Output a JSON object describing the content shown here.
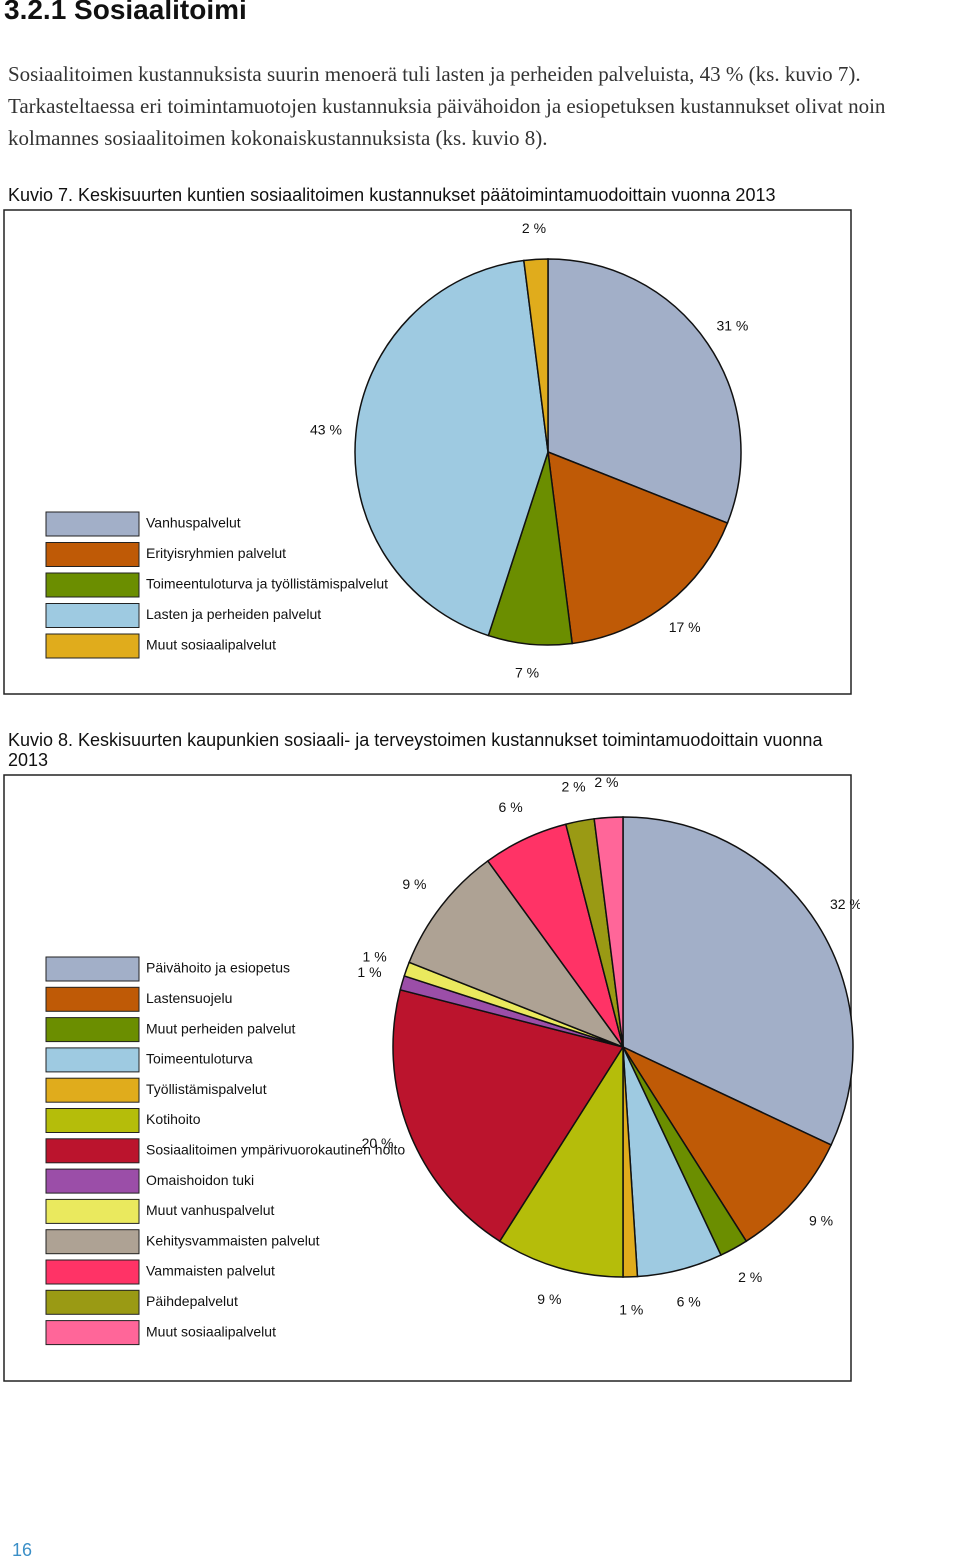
{
  "heading": "3.2.1   Sosiaalitoimi",
  "paragraph": "Sosiaalitoimen kustannuksista suurin menoerä tuli lasten ja perheiden palveluista, 43 % (ks. kuvio 7). Tarkasteltaessa eri toimintamuotojen kustannuksia päivähoidon ja esiopetuksen kustannukset olivat noin kolmannes sosiaalitoimen kokonaiskustannuksista (ks. kuvio 8).",
  "chart_data": [
    {
      "type": "pie",
      "title": "Kuvio 7.  Keskisuurten kuntien sosiaalitoimen kustannukset päätoimintamuodoittain vuonna 2013",
      "categories": [
        "Vanhuspalvelut",
        "Erityisryhmien palvelut",
        "Toimeentuloturva ja työllistämispalvelut",
        "Lasten ja perheiden palvelut",
        "Muut sosiaalipalvelut"
      ],
      "values": [
        31,
        17,
        7,
        43,
        2
      ],
      "value_labels": [
        "31 %",
        "17 %",
        "7 %",
        "43 %",
        "2 %"
      ],
      "colors": [
        "#a2afc8",
        "#bf5a06",
        "#6b8e00",
        "#9ecae1",
        "#e0ac1c"
      ]
    },
    {
      "type": "pie",
      "title": "Kuvio 8. Keskisuurten kaupunkien sosiaali- ja terveystoimen kustannukset toimintamuodoittain vuonna 2013",
      "categories": [
        "Päivähoito ja esiopetus",
        "Lastensuojelu",
        "Muut perheiden palvelut",
        "Toimeentuloturva",
        "Työllistämispalvelut",
        "Kotihoito",
        "Sosiaalitoimen ympärivuorokautinen hoito",
        "Omaishoidon tuki",
        "Muut vanhuspalvelut",
        "Kehitysvammaisten palvelut",
        "Vammaisten palvelut",
        "Päihdepalvelut",
        "Muut sosiaalipalvelut"
      ],
      "values": [
        32,
        9,
        2,
        6,
        1,
        9,
        20,
        1,
        1,
        9,
        6,
        2,
        2
      ],
      "value_labels": [
        "32 %",
        "9 %",
        "2 %",
        "6 %",
        "1 %",
        "9 %",
        "20 %",
        "1 %",
        "1 %",
        "9 %",
        "6 %",
        "2 %",
        "2 %"
      ],
      "colors": [
        "#a2afc8",
        "#bf5a06",
        "#6b8e00",
        "#9ecae1",
        "#e0ac1c",
        "#b5bd0a",
        "#bb142d",
        "#9b4ea8",
        "#eae95e",
        "#aea294",
        "#ff3366",
        "#9a9a14",
        "#ff6699"
      ]
    }
  ],
  "page_number": "16"
}
